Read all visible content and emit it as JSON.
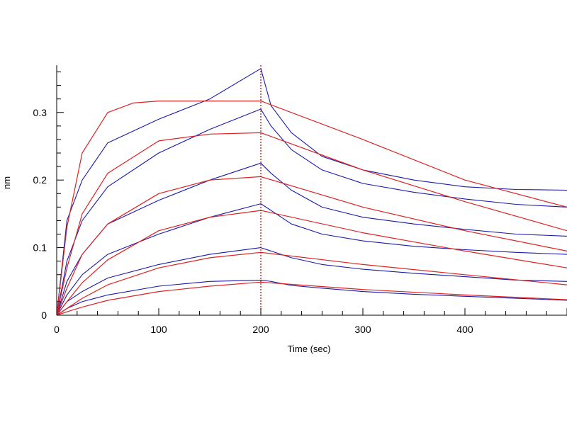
{
  "chart_data": {
    "type": "line",
    "title": "",
    "xlabel": "Time (sec)",
    "ylabel": "nm",
    "xlim": [
      0,
      500
    ],
    "ylim": [
      0,
      0.37
    ],
    "x_ticks": [
      0,
      100,
      200,
      300,
      400
    ],
    "x_tick_labels": [
      "0",
      "100",
      "200",
      "300",
      "400"
    ],
    "y_ticks": [
      0,
      0.1,
      0.2,
      0.3
    ],
    "y_tick_labels": [
      "0",
      "0.1",
      "0.2",
      "0.3"
    ],
    "grid": false,
    "legend": "none",
    "marker_line": {
      "x": 200,
      "color": "#cc0000",
      "style": "dotted"
    },
    "colors": {
      "measured": "#1a1aaa",
      "fit": "#dd2222",
      "axis": "#000000"
    },
    "series": [
      {
        "kind": "measured",
        "values": [
          [
            0,
            0
          ],
          [
            10,
            0.14
          ],
          [
            25,
            0.2
          ],
          [
            50,
            0.255
          ],
          [
            100,
            0.29
          ],
          [
            150,
            0.32
          ],
          [
            200,
            0.365
          ],
          [
            210,
            0.31
          ],
          [
            230,
            0.27
          ],
          [
            260,
            0.235
          ],
          [
            300,
            0.215
          ],
          [
            350,
            0.2
          ],
          [
            400,
            0.19
          ],
          [
            450,
            0.186
          ],
          [
            500,
            0.185
          ]
        ]
      },
      {
        "kind": "measured",
        "values": [
          [
            0,
            0
          ],
          [
            10,
            0.08
          ],
          [
            25,
            0.14
          ],
          [
            50,
            0.19
          ],
          [
            100,
            0.24
          ],
          [
            150,
            0.275
          ],
          [
            200,
            0.305
          ],
          [
            210,
            0.28
          ],
          [
            230,
            0.245
          ],
          [
            260,
            0.215
          ],
          [
            300,
            0.195
          ],
          [
            350,
            0.182
          ],
          [
            400,
            0.172
          ],
          [
            450,
            0.164
          ],
          [
            500,
            0.16
          ]
        ]
      },
      {
        "kind": "measured",
        "values": [
          [
            0,
            0
          ],
          [
            10,
            0.05
          ],
          [
            25,
            0.09
          ],
          [
            50,
            0.135
          ],
          [
            100,
            0.17
          ],
          [
            150,
            0.2
          ],
          [
            200,
            0.225
          ],
          [
            210,
            0.21
          ],
          [
            230,
            0.185
          ],
          [
            260,
            0.16
          ],
          [
            300,
            0.145
          ],
          [
            350,
            0.135
          ],
          [
            400,
            0.127
          ],
          [
            450,
            0.12
          ],
          [
            500,
            0.117
          ]
        ]
      },
      {
        "kind": "measured",
        "values": [
          [
            0,
            0
          ],
          [
            10,
            0.03
          ],
          [
            25,
            0.06
          ],
          [
            50,
            0.09
          ],
          [
            100,
            0.12
          ],
          [
            150,
            0.145
          ],
          [
            200,
            0.165
          ],
          [
            210,
            0.155
          ],
          [
            230,
            0.135
          ],
          [
            260,
            0.12
          ],
          [
            300,
            0.11
          ],
          [
            350,
            0.102
          ],
          [
            400,
            0.097
          ],
          [
            450,
            0.093
          ],
          [
            500,
            0.09
          ]
        ]
      },
      {
        "kind": "measured",
        "values": [
          [
            0,
            0
          ],
          [
            10,
            0.02
          ],
          [
            25,
            0.035
          ],
          [
            50,
            0.055
          ],
          [
            100,
            0.075
          ],
          [
            150,
            0.09
          ],
          [
            200,
            0.1
          ],
          [
            210,
            0.095
          ],
          [
            230,
            0.085
          ],
          [
            260,
            0.075
          ],
          [
            300,
            0.068
          ],
          [
            350,
            0.062
          ],
          [
            400,
            0.057
          ],
          [
            450,
            0.052
          ],
          [
            500,
            0.05
          ]
        ]
      },
      {
        "kind": "measured",
        "values": [
          [
            0,
            0
          ],
          [
            10,
            0.01
          ],
          [
            25,
            0.02
          ],
          [
            50,
            0.03
          ],
          [
            100,
            0.043
          ],
          [
            150,
            0.05
          ],
          [
            200,
            0.052
          ],
          [
            210,
            0.05
          ],
          [
            230,
            0.044
          ],
          [
            260,
            0.04
          ],
          [
            300,
            0.035
          ],
          [
            350,
            0.031
          ],
          [
            400,
            0.028
          ],
          [
            450,
            0.025
          ],
          [
            500,
            0.022
          ]
        ]
      },
      {
        "kind": "fit",
        "values": [
          [
            0,
            0
          ],
          [
            10,
            0.13
          ],
          [
            25,
            0.24
          ],
          [
            50,
            0.3
          ],
          [
            75,
            0.314
          ],
          [
            100,
            0.317
          ],
          [
            150,
            0.317
          ],
          [
            200,
            0.317
          ],
          [
            300,
            0.26
          ],
          [
            400,
            0.2
          ],
          [
            500,
            0.16
          ]
        ]
      },
      {
        "kind": "fit",
        "values": [
          [
            0,
            0
          ],
          [
            10,
            0.07
          ],
          [
            25,
            0.15
          ],
          [
            50,
            0.21
          ],
          [
            100,
            0.258
          ],
          [
            150,
            0.268
          ],
          [
            200,
            0.27
          ],
          [
            300,
            0.215
          ],
          [
            400,
            0.168
          ],
          [
            500,
            0.125
          ]
        ]
      },
      {
        "kind": "fit",
        "values": [
          [
            0,
            0
          ],
          [
            10,
            0.04
          ],
          [
            25,
            0.09
          ],
          [
            50,
            0.135
          ],
          [
            100,
            0.18
          ],
          [
            150,
            0.2
          ],
          [
            200,
            0.205
          ],
          [
            300,
            0.16
          ],
          [
            400,
            0.125
          ],
          [
            500,
            0.095
          ]
        ]
      },
      {
        "kind": "fit",
        "values": [
          [
            0,
            0
          ],
          [
            10,
            0.02
          ],
          [
            25,
            0.048
          ],
          [
            50,
            0.082
          ],
          [
            100,
            0.125
          ],
          [
            150,
            0.145
          ],
          [
            200,
            0.155
          ],
          [
            300,
            0.122
          ],
          [
            400,
            0.095
          ],
          [
            500,
            0.07
          ]
        ]
      },
      {
        "kind": "fit",
        "values": [
          [
            0,
            0
          ],
          [
            10,
            0.01
          ],
          [
            25,
            0.025
          ],
          [
            50,
            0.045
          ],
          [
            100,
            0.07
          ],
          [
            150,
            0.085
          ],
          [
            200,
            0.093
          ],
          [
            300,
            0.075
          ],
          [
            400,
            0.06
          ],
          [
            500,
            0.045
          ]
        ]
      },
      {
        "kind": "fit",
        "values": [
          [
            0,
            0
          ],
          [
            10,
            0.005
          ],
          [
            25,
            0.012
          ],
          [
            50,
            0.022
          ],
          [
            100,
            0.035
          ],
          [
            150,
            0.043
          ],
          [
            200,
            0.049
          ],
          [
            300,
            0.038
          ],
          [
            400,
            0.03
          ],
          [
            500,
            0.023
          ]
        ]
      }
    ]
  }
}
